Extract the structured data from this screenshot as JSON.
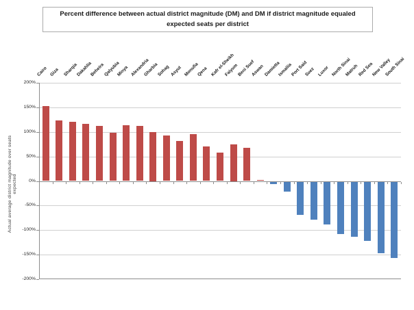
{
  "chart_data": {
    "type": "bar",
    "title": "Percent difference between actual district magnitude (DM) and DM if district magnitude equaled expected seats per district",
    "ylabel": "Actual average district magnitude over seats expected",
    "xlabel": "",
    "ylim": [
      -200,
      200
    ],
    "tick_step": 50,
    "y_ticks": [
      "200%",
      "150%",
      "100%",
      "50%",
      "0%",
      "-50%",
      "-100%",
      "-150%",
      "-200%"
    ],
    "grid": true,
    "legend": false,
    "unit": "%",
    "positive_color": "#BE4B48",
    "negative_color": "#4F81BD",
    "gridline_color": "#cfcfcf",
    "axis_color": "#8c8c8c",
    "categories": [
      "Cairo",
      "Giza",
      "Sharqia",
      "Dakahlia",
      "Beheira",
      "Qalyubia",
      "Minya",
      "Alexandria",
      "Gharbia",
      "Sohag",
      "Asyut",
      "Monufia",
      "Qena",
      "Kafr el-Sheikh",
      "Faiyum",
      "Beni Suef",
      "Aswan",
      "Damietta",
      "Ismailia",
      "Port Said",
      "Suez",
      "Luxor",
      "North Sinai",
      "Matruh",
      "Red Sea",
      "New Valley",
      "South Sinai"
    ],
    "values": [
      152,
      124,
      120,
      117,
      112,
      98,
      114,
      112,
      100,
      93,
      81,
      95,
      70,
      58,
      75,
      67,
      2,
      -5,
      -20,
      -68,
      -77,
      -87,
      -107,
      -112,
      -121,
      -145,
      -155
    ]
  }
}
